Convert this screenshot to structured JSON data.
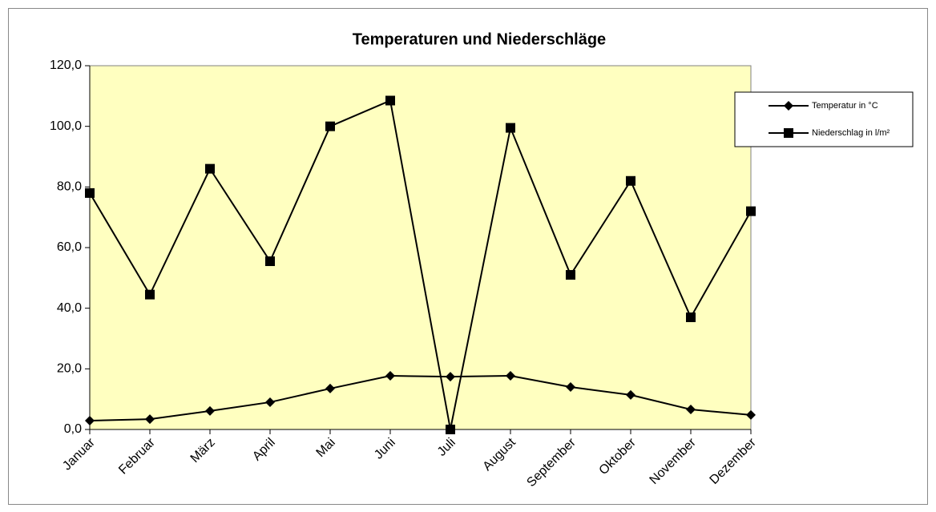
{
  "chart_data": {
    "type": "line",
    "title": "Temperaturen und Niederschläge",
    "categories": [
      "Januar",
      "Februar",
      "März",
      "April",
      "Mai",
      "Juni",
      "Juli",
      "August",
      "September",
      "Oktober",
      "November",
      "Dezember"
    ],
    "series": [
      {
        "name": "Temperatur in °C",
        "color": "#000000",
        "marker": "diamond",
        "values": [
          2.9,
          3.4,
          6.1,
          9.0,
          13.5,
          17.7,
          17.4,
          17.7,
          14.0,
          11.4,
          6.6,
          4.8
        ]
      },
      {
        "name": "Niederschlag in l/m²",
        "color": "#000000",
        "marker": "square",
        "values": [
          78,
          44.5,
          86,
          55.5,
          100,
          108.5,
          0,
          99.5,
          51,
          82,
          37,
          72
        ]
      }
    ],
    "ylim": [
      0,
      120
    ],
    "yticks": [
      {
        "value": 0,
        "label": "0,0"
      },
      {
        "value": 20,
        "label": "20,0"
      },
      {
        "value": 40,
        "label": "40,0"
      },
      {
        "value": 60,
        "label": "60,0"
      },
      {
        "value": 80,
        "label": "80,0"
      },
      {
        "value": 100,
        "label": "100,0"
      },
      {
        "value": 120,
        "label": "120,0"
      }
    ],
    "plot_background": "#ffffc0",
    "legend": "right"
  }
}
